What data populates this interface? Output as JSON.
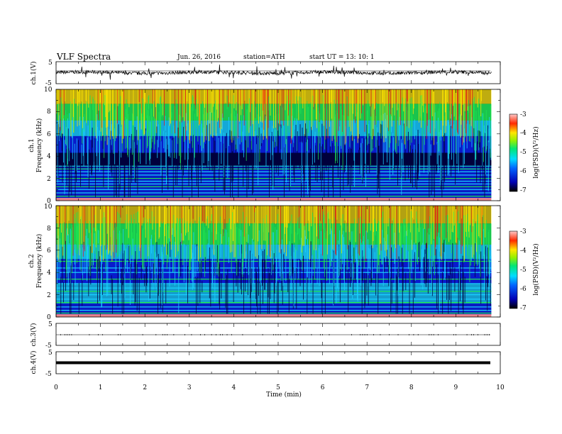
{
  "header": {
    "title": "VLF  Spectra",
    "date": "Jun. 26, 2016",
    "station": "station=ATH",
    "start_time": "start  UT  =   13: 10: 1"
  },
  "chart_data": [
    {
      "type": "line",
      "panel": "ch1-waveform",
      "ylabel": "ch.1(V)",
      "ylim": [
        -5,
        5
      ],
      "yticks": [
        "5",
        "-5"
      ],
      "xlim": [
        0,
        10
      ],
      "data_xlim": [
        0,
        9.8
      ],
      "baseline": 0
    },
    {
      "type": "heatmap",
      "panel": "ch1-spectrogram",
      "ylabel": [
        "ch.1",
        "Frequency  (kHz)"
      ],
      "ylim": [
        0,
        10
      ],
      "yticks": [
        "0",
        "2",
        "4",
        "6",
        "8",
        "10"
      ],
      "xlim": [
        0,
        10
      ],
      "data_xlim": [
        0,
        9.8
      ],
      "colorbar": {
        "label": "log(PSD)(V²/Hz)",
        "range": [
          -7,
          -3
        ],
        "ticks": [
          "-3",
          "-4",
          "-5",
          "-6",
          "-7"
        ]
      }
    },
    {
      "type": "heatmap",
      "panel": "ch2-spectrogram",
      "ylabel": [
        "ch.2",
        "Frequency  (kHz)"
      ],
      "ylim": [
        0,
        10
      ],
      "yticks": [
        "0",
        "2",
        "4",
        "6",
        "8",
        "10"
      ],
      "xlim": [
        0,
        10
      ],
      "data_xlim": [
        0,
        9.8
      ],
      "colorbar": {
        "label": "log(PSD)(V²/Hz)",
        "range": [
          -7,
          -3
        ],
        "ticks": [
          "-3",
          "-4",
          "-5",
          "-6",
          "-7"
        ]
      }
    },
    {
      "type": "line",
      "panel": "ch3-waveform",
      "ylabel": "ch.3(V)",
      "ylim": [
        -5,
        5
      ],
      "yticks": [
        "5",
        "-5"
      ],
      "xlim": [
        0,
        10
      ],
      "data_xlim": [
        0,
        9.8
      ],
      "baseline": 0
    },
    {
      "type": "line",
      "panel": "ch4-waveform",
      "ylabel": "ch.4(V)",
      "ylim": [
        -5,
        5
      ],
      "yticks": [
        "5",
        "-5"
      ],
      "xlim": [
        0,
        10
      ],
      "data_xlim": [
        0,
        9.8
      ],
      "baseline": 0
    }
  ],
  "xaxis": {
    "label": "Time  (min)",
    "ticks": [
      "0",
      "1",
      "2",
      "3",
      "4",
      "5",
      "6",
      "7",
      "8",
      "9",
      "10"
    ]
  },
  "colors": {
    "spec_dark": "#00003c",
    "spec_blue": "#0a1edc",
    "spec_cyan": "#19d2ff",
    "spec_green": "#1ee650",
    "spec_yellow": "#ffe600",
    "spec_red": "#e61414",
    "spec_pink": "#ff9090"
  }
}
